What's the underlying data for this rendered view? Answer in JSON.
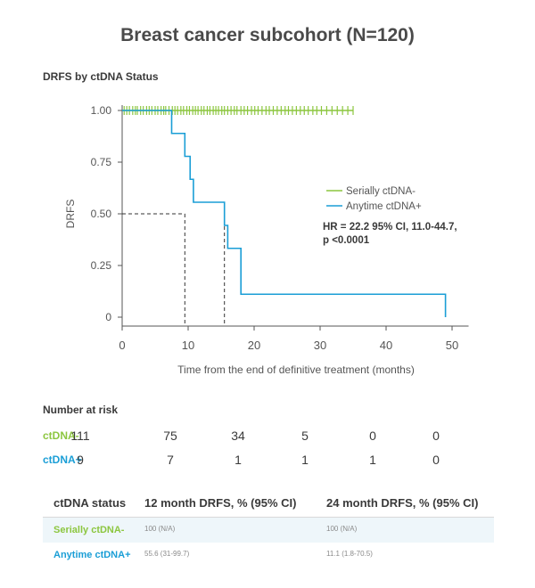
{
  "title": "Breast cancer subcohort (N=120)",
  "colors": {
    "negative": "#8cc63f",
    "positive": "#1a9ed6",
    "axis": "#555555"
  },
  "chart_data": {
    "type": "line",
    "subtitle": "DRFS by ctDNA Status",
    "xlabel": "Time from the end of definitive treatment (months)",
    "ylabel": "DRFS",
    "xlim": [
      0,
      52
    ],
    "ylim": [
      0,
      1
    ],
    "xticks": [
      "0",
      "10",
      "20",
      "30",
      "40",
      "50"
    ],
    "yticks": [
      "0",
      "0.25",
      "0.50",
      "0.75",
      "1.00"
    ],
    "legend_position": "right",
    "series": [
      {
        "name": "Serially ctDNA-",
        "step_x": [
          0,
          35
        ],
        "step_y": [
          1.0,
          1.0
        ],
        "censor_x": [
          0.3,
          0.7,
          1.1,
          1.6,
          2.0,
          2.3,
          2.8,
          3.2,
          3.7,
          4.1,
          4.5,
          5.0,
          5.4,
          5.9,
          6.3,
          6.6,
          7.1,
          7.6,
          8.0,
          8.4,
          8.9,
          9.3,
          9.8,
          10.2,
          10.7,
          11.1,
          11.5,
          12.0,
          12.4,
          12.9,
          13.3,
          13.8,
          14.2,
          14.6,
          15.1,
          15.5,
          16.0,
          16.5,
          17.0,
          17.4,
          18.0,
          18.5,
          19.0,
          19.6,
          20.1,
          20.6,
          21.2,
          21.8,
          22.3,
          22.9,
          23.5,
          24.1,
          24.7,
          25.2,
          25.8,
          26.4,
          27.0,
          27.6,
          28.2,
          28.9,
          29.5,
          30.2,
          31.0,
          31.8,
          32.6,
          33.4,
          34.2,
          35.0
        ],
        "censor_y": 1.0
      },
      {
        "name": "Anytime ctDNA+",
        "step_x": [
          0,
          7.5,
          7.5,
          9.5,
          9.5,
          10.3,
          10.3,
          10.8,
          10.8,
          15.5,
          15.5,
          16.0,
          16.0,
          18.0,
          18.0,
          49.0,
          49.0
        ],
        "step_y": [
          1.0,
          1.0,
          0.889,
          0.889,
          0.778,
          0.778,
          0.667,
          0.667,
          0.556,
          0.556,
          0.444,
          0.444,
          0.333,
          0.333,
          0.111,
          0.111,
          0.0
        ],
        "censor_x": [],
        "censor_y": null
      }
    ],
    "median_markers": [
      {
        "x": 9.5,
        "y": 0.5
      },
      {
        "x": 15.5,
        "y": 0.5
      }
    ],
    "annotation": "HR = 22.2 95% CI, 11.0-44.7,\np <0.0001"
  },
  "risk_table": {
    "label": "Number at risk",
    "rows": [
      {
        "name": "ctDNA-",
        "values": [
          "111",
          "75",
          "34",
          "5",
          "0",
          "0"
        ]
      },
      {
        "name": "ctDNA+",
        "values": [
          "9",
          "7",
          "1",
          "1",
          "1",
          "0"
        ]
      }
    ]
  },
  "summary_table": {
    "headers": [
      "ctDNA status",
      "12 month DRFS, % (95% CI)",
      "24 month DRFS, % (95% CI)"
    ],
    "rows": [
      {
        "name": "Serially ctDNA-",
        "m12": "100 (N/A)",
        "m24": "100 (N/A)"
      },
      {
        "name": "Anytime ctDNA+",
        "m12": "55.6 (31-99.7)",
        "m24": "11.1 (1.8-70.5)"
      }
    ]
  }
}
